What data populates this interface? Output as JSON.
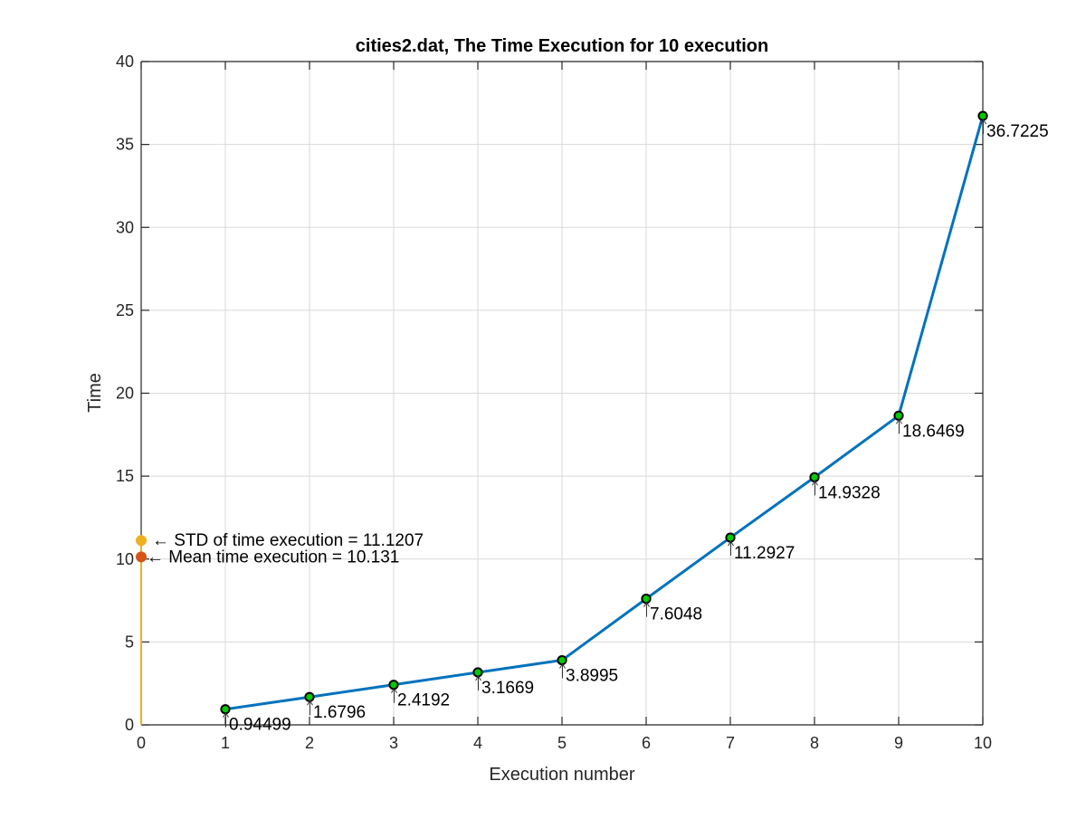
{
  "chart_data": {
    "type": "line",
    "title": "cities2.dat, The Time Execution for 10 execution",
    "xlabel": "Execution number",
    "ylabel": "Time",
    "xlim": [
      0,
      10
    ],
    "ylim": [
      0,
      40
    ],
    "xticks": [
      0,
      1,
      2,
      3,
      4,
      5,
      6,
      7,
      8,
      9,
      10
    ],
    "yticks": [
      0,
      5,
      10,
      15,
      20,
      25,
      30,
      35,
      40
    ],
    "grid": true,
    "series": [
      {
        "x": [
          1,
          2,
          3,
          4,
          5,
          6,
          7,
          8,
          9,
          10
        ],
        "values": [
          0.94499,
          1.6796,
          2.4192,
          3.1669,
          3.8995,
          7.6048,
          11.2927,
          14.9328,
          18.6469,
          36.7225
        ],
        "labels": [
          "0.94499",
          "1.6796",
          "2.4192",
          "3.1669",
          "3.8995",
          "7.6048",
          "11.2927",
          "14.9328",
          "18.6469",
          "36.7225"
        ],
        "color": "#0072BD",
        "marker_fill": "#00CC00",
        "marker_edge": "#000000"
      }
    ],
    "reference_points": [
      {
        "x": 0,
        "y": 11.1207,
        "text": "← STD of time execution = 11.1207",
        "color": "#EDB120"
      },
      {
        "x": 0,
        "y": 10.131,
        "text": "← Mean time execution = 10.131",
        "color": "#D95319"
      }
    ],
    "reference_stem": {
      "x": 0,
      "from": 0,
      "to": 11.1207,
      "color": "#EDB120"
    }
  }
}
